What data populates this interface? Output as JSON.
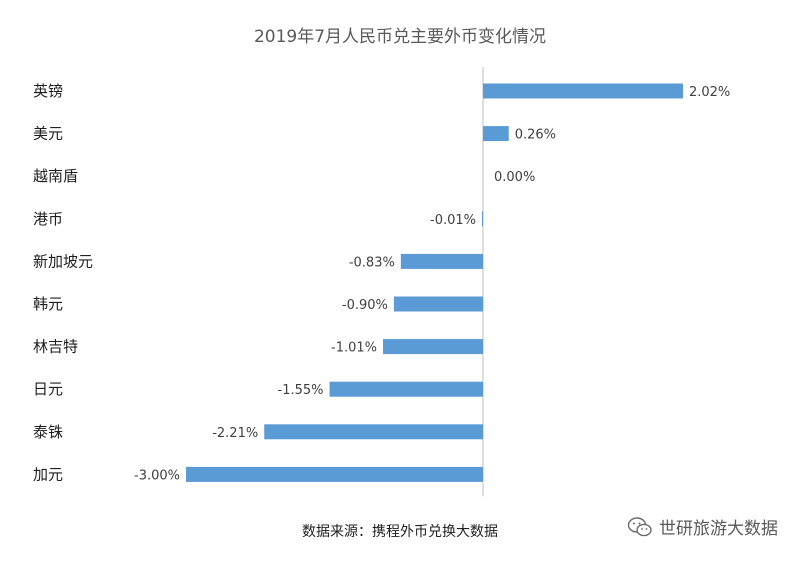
{
  "chart_data": {
    "type": "bar",
    "orientation": "horizontal",
    "title": "2019年7月人民币兑主要外币变化情况",
    "categories": [
      "英镑",
      "美元",
      "越南盾",
      "港币",
      "新加坡元",
      "韩元",
      "林吉特",
      "日元",
      "泰铢",
      "加元"
    ],
    "values": [
      2.02,
      0.26,
      0.0,
      -0.01,
      -0.83,
      -0.9,
      -1.01,
      -1.55,
      -2.21,
      -3.0
    ],
    "data_labels": [
      "2.02%",
      "0.26%",
      "0.00%",
      "-0.01%",
      "-0.83%",
      "-0.90%",
      "-1.01%",
      "-1.55%",
      "-2.21%",
      "-3.00%"
    ],
    "unit": "%",
    "bar_color": "#5b9bd5",
    "axis_color": "#bfbfbf",
    "gridlines": false,
    "legend": "none"
  },
  "source_note": "数据来源：携程外币兑换大数据",
  "watermark": {
    "icon": "wechat-icon",
    "text": "世研旅游大数据"
  }
}
